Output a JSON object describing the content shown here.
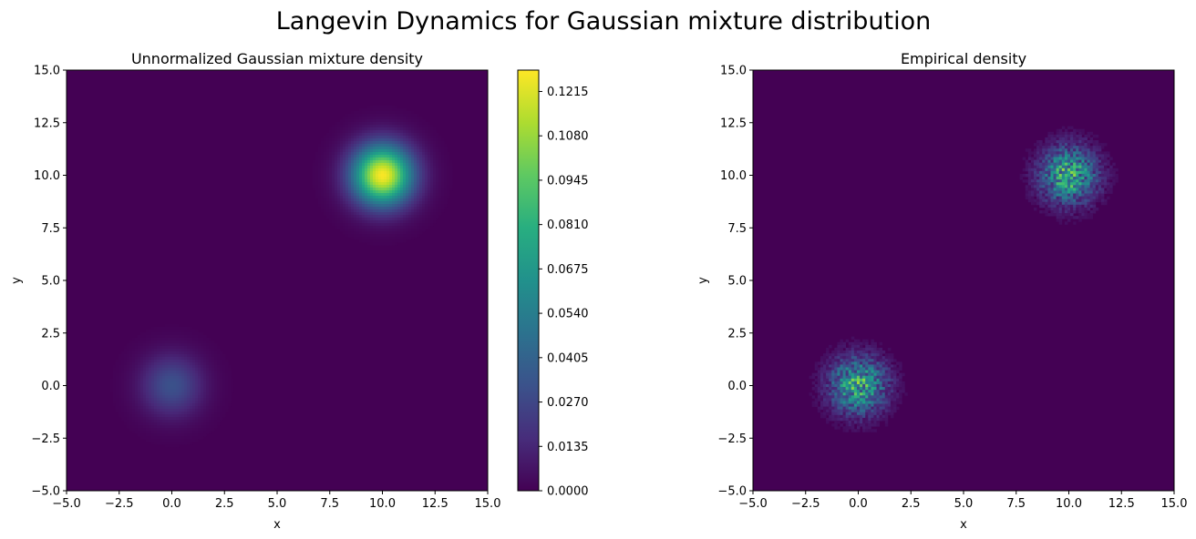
{
  "figure": {
    "suptitle": "Langevin Dynamics for Gaussian mixture distribution"
  },
  "chart_data": [
    {
      "type": "heatmap",
      "title": "Unnormalized Gaussian mixture density",
      "xlabel": "x",
      "ylabel": "y",
      "xlim": [
        -5,
        15
      ],
      "ylim": [
        -5,
        15
      ],
      "xticks": [
        "−5.0",
        "−2.5",
        "0.0",
        "2.5",
        "5.0",
        "7.5",
        "10.0",
        "12.5",
        "15.0"
      ],
      "yticks": [
        "−5.0",
        "−2.5",
        "0.0",
        "2.5",
        "5.0",
        "7.5",
        "10.0",
        "12.5",
        "15.0"
      ],
      "colormap": "viridis",
      "components": [
        {
          "mean": [
            0,
            0
          ],
          "sigma": 1.0,
          "peak": 0.032
        },
        {
          "mean": [
            10,
            10
          ],
          "sigma": 1.0,
          "peak": 0.127
        }
      ],
      "colorbar": {
        "range": [
          0.0,
          0.128
        ],
        "ticks": [
          0.0,
          0.0135,
          0.027,
          0.0405,
          0.054,
          0.0675,
          0.081,
          0.0945,
          0.108,
          0.1215
        ],
        "tick_labels": [
          "0.0000",
          "0.0135",
          "0.0270",
          "0.0405",
          "0.0540",
          "0.0675",
          "0.0810",
          "0.0945",
          "0.1080",
          "0.1215"
        ]
      }
    },
    {
      "type": "heatmap",
      "title": "Empirical density",
      "xlabel": "x",
      "ylabel": "y",
      "xlim": [
        -5,
        15
      ],
      "ylim": [
        -5,
        15
      ],
      "xticks": [
        "−5.0",
        "−2.5",
        "0.0",
        "2.5",
        "5.0",
        "7.5",
        "10.0",
        "12.5",
        "15.0"
      ],
      "yticks": [
        "−5.0",
        "−2.5",
        "0.0",
        "2.5",
        "5.0",
        "7.5",
        "10.0",
        "12.5",
        "15.0"
      ],
      "colormap": "viridis",
      "bins": 150,
      "clusters": [
        {
          "center": [
            0,
            0
          ],
          "sigma": 0.9
        },
        {
          "center": [
            10,
            10
          ],
          "sigma": 0.9
        }
      ]
    }
  ]
}
